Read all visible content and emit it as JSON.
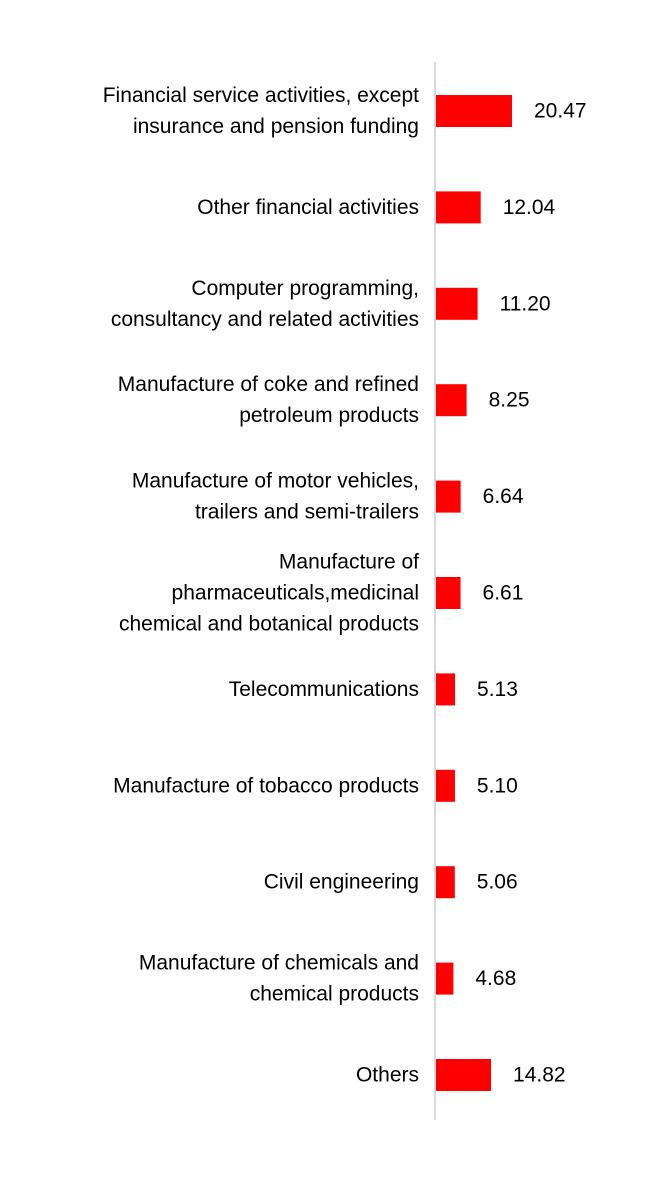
{
  "chart_data": {
    "type": "bar",
    "orientation": "horizontal",
    "categories": [
      [
        "Financial service activities, except",
        "insurance and pension funding"
      ],
      [
        "Other financial activities"
      ],
      [
        "Computer programming,",
        "consultancy and related activities"
      ],
      [
        "Manufacture of coke and refined",
        "petroleum products"
      ],
      [
        "Manufacture of motor vehicles,",
        "trailers and semi-trailers"
      ],
      [
        "Manufacture of",
        "pharmaceuticals,medicinal",
        "chemical and botanical products"
      ],
      [
        "Telecommunications"
      ],
      [
        "Manufacture of tobacco products"
      ],
      [
        "Civil engineering"
      ],
      [
        "Manufacture of chemicals and",
        "chemical products"
      ],
      [
        "Others"
      ]
    ],
    "values": [
      20.47,
      12.04,
      11.2,
      8.25,
      6.64,
      6.61,
      5.13,
      5.1,
      5.06,
      4.68,
      14.82
    ],
    "value_labels": [
      "20.47",
      "12.04",
      "11.20",
      "8.25",
      "6.64",
      "6.61",
      "5.13",
      "5.10",
      "5.06",
      "4.68",
      "14.82"
    ],
    "bar_color": "#ff0000",
    "axis_color": "#d9d9d9",
    "xlim": [
      0,
      20.47
    ],
    "grid": false,
    "legend": "none"
  }
}
